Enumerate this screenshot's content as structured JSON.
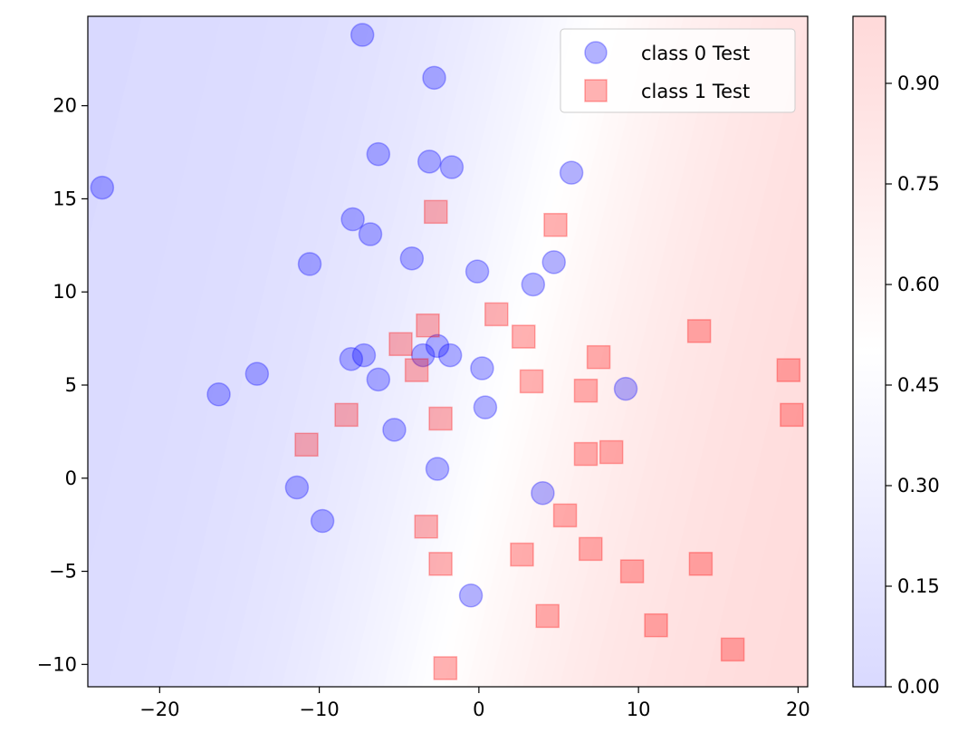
{
  "chart_data": {
    "type": "scatter",
    "title": "",
    "xlabel": "",
    "ylabel": "",
    "xlim": [
      -24.5,
      20.6
    ],
    "ylim": [
      -11.2,
      24.8
    ],
    "xticks": [
      -20,
      -10,
      0,
      10,
      20
    ],
    "yticks": [
      -10,
      -5,
      0,
      5,
      10,
      15,
      20
    ],
    "xtick_labels": [
      "−20",
      "−10",
      "0",
      "10",
      "20"
    ],
    "ytick_labels": [
      "−10",
      "−5",
      "0",
      "5",
      "10",
      "15",
      "20"
    ],
    "grid": false,
    "legend_position": "top-right",
    "background": {
      "kind": "probability contour",
      "colormap": "bwr",
      "alpha": 0.15,
      "boundary_x_at_y0": 0.5,
      "boundary_slope_dx_per_dy": 0.28,
      "logistic_scale": 7.0
    },
    "colorbar": {
      "range": [
        0.0,
        1.0
      ],
      "ticks": [
        0.0,
        0.15,
        0.3,
        0.45,
        0.6,
        0.75,
        0.9
      ],
      "tick_labels": [
        "0.00",
        "0.15",
        "0.30",
        "0.45",
        "0.60",
        "0.75",
        "0.90"
      ]
    },
    "series": [
      {
        "name": "class 0 Test",
        "marker": "circle",
        "color": "#0000ff",
        "alpha": 0.3,
        "points": [
          [
            -7.3,
            23.8
          ],
          [
            -2.8,
            21.5
          ],
          [
            -23.6,
            15.6
          ],
          [
            -6.3,
            17.4
          ],
          [
            -3.1,
            17.0
          ],
          [
            -1.7,
            16.7
          ],
          [
            5.8,
            16.4
          ],
          [
            -7.9,
            13.9
          ],
          [
            -6.8,
            13.1
          ],
          [
            -10.6,
            11.5
          ],
          [
            -4.2,
            11.8
          ],
          [
            -0.1,
            11.1
          ],
          [
            4.7,
            11.6
          ],
          [
            3.4,
            10.4
          ],
          [
            -2.6,
            7.1
          ],
          [
            -7.2,
            6.6
          ],
          [
            -8.0,
            6.4
          ],
          [
            -3.5,
            6.6
          ],
          [
            -1.8,
            6.6
          ],
          [
            -13.9,
            5.6
          ],
          [
            -6.3,
            5.3
          ],
          [
            0.2,
            5.9
          ],
          [
            -16.3,
            4.5
          ],
          [
            9.2,
            4.8
          ],
          [
            0.4,
            3.8
          ],
          [
            -5.3,
            2.6
          ],
          [
            -2.6,
            0.5
          ],
          [
            -11.4,
            -0.5
          ],
          [
            -9.8,
            -2.3
          ],
          [
            4.0,
            -0.8
          ],
          [
            -0.5,
            -6.3
          ]
        ]
      },
      {
        "name": "class 1 Test",
        "marker": "square",
        "color": "#ff0000",
        "alpha": 0.3,
        "points": [
          [
            -2.7,
            14.3
          ],
          [
            4.8,
            13.6
          ],
          [
            1.1,
            8.8
          ],
          [
            -3.2,
            8.2
          ],
          [
            -4.9,
            7.2
          ],
          [
            2.8,
            7.6
          ],
          [
            13.8,
            7.9
          ],
          [
            7.5,
            6.5
          ],
          [
            -3.9,
            5.8
          ],
          [
            3.3,
            5.2
          ],
          [
            6.7,
            4.7
          ],
          [
            19.4,
            5.8
          ],
          [
            -8.3,
            3.4
          ],
          [
            -2.4,
            3.2
          ],
          [
            19.6,
            3.4
          ],
          [
            -10.8,
            1.8
          ],
          [
            6.7,
            1.3
          ],
          [
            8.3,
            1.4
          ],
          [
            -3.3,
            -2.6
          ],
          [
            5.4,
            -2.0
          ],
          [
            7.0,
            -3.8
          ],
          [
            2.7,
            -4.1
          ],
          [
            -2.4,
            -4.6
          ],
          [
            9.6,
            -5.0
          ],
          [
            13.9,
            -4.6
          ],
          [
            4.3,
            -7.4
          ],
          [
            11.1,
            -7.9
          ],
          [
            15.9,
            -9.2
          ],
          [
            -2.1,
            -10.2
          ]
        ]
      }
    ]
  }
}
